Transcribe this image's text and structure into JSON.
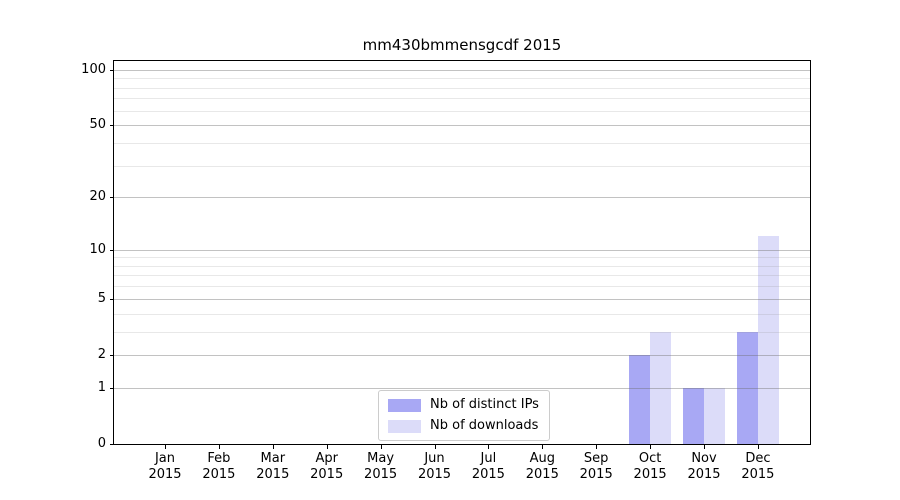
{
  "chart_data": {
    "type": "bar",
    "title": "mm430bmmensgcdf 2015",
    "categories": [
      "Jan",
      "Feb",
      "Mar",
      "Apr",
      "May",
      "Jun",
      "Jul",
      "Aug",
      "Sep",
      "Oct",
      "Nov",
      "Dec"
    ],
    "year_label": "2015",
    "series": [
      {
        "name": "Nb of distinct IPs",
        "color": "#a8a8f4",
        "values": [
          0,
          0,
          0,
          0,
          0,
          0,
          0,
          0,
          0,
          2,
          1,
          3
        ]
      },
      {
        "name": "Nb of downloads",
        "color": "#dcdcf9",
        "values": [
          0,
          0,
          0,
          0,
          0,
          0,
          0,
          0,
          0,
          3,
          1,
          12
        ]
      }
    ],
    "yaxis": {
      "scale": "log1p",
      "major_ticks": [
        0,
        1,
        2,
        5,
        10,
        20,
        50,
        100
      ],
      "minor_ticks": [
        3,
        4,
        6,
        7,
        8,
        9,
        30,
        40,
        60,
        70,
        80,
        90
      ],
      "ymax": 111.6
    },
    "xlabel": "",
    "ylabel": "",
    "legend": {
      "position": "bottom-center"
    },
    "grid": {
      "major": true,
      "minor": true
    }
  }
}
